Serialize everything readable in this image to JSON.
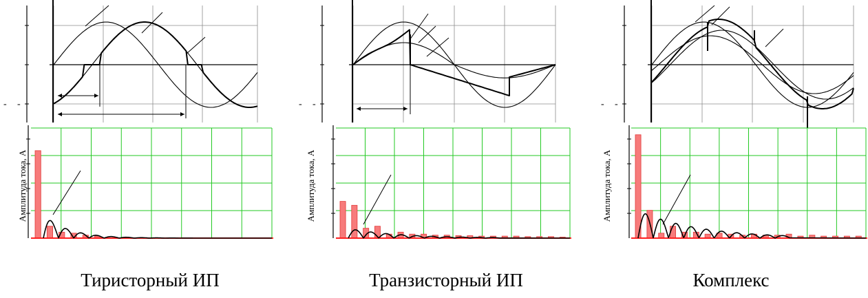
{
  "panels": [
    {
      "id": "thyristor",
      "caption": "Тиристорный ИП",
      "spectrum_ylabel": "Амплитуда тока, А"
    },
    {
      "id": "transistor",
      "caption": "Транзисторный ИП",
      "spectrum_ylabel": "Амплитуда тока, А"
    },
    {
      "id": "complex",
      "caption": "Комплекс",
      "spectrum_ylabel": "Амплитуда тока, А"
    }
  ],
  "axis_marks": {
    "minus": "-"
  },
  "colors": {
    "grid_top": "#8c8c8c",
    "grid_spectrum": "#22c922",
    "bar_fill": "#f77b7b",
    "bar_edge": "#e23a3a",
    "axis_red": "#ff2020",
    "line": "#000000"
  },
  "chart_data": [
    {
      "type": "bar",
      "panel": "thyristor",
      "harmonics": [
        1,
        2,
        3,
        4,
        5,
        6,
        7,
        8,
        9,
        10,
        11,
        12,
        13,
        14,
        15,
        16,
        17,
        18,
        19,
        20
      ],
      "values": [
        0.88,
        0.12,
        0.06,
        0.05,
        0.03,
        0.02,
        0,
        0,
        0,
        0,
        0,
        0,
        0,
        0,
        0,
        0,
        0,
        0,
        0,
        0
      ],
      "ylim": [
        0,
        1
      ]
    },
    {
      "type": "bar",
      "panel": "transistor",
      "harmonics": [
        1,
        2,
        3,
        4,
        5,
        6,
        7,
        8,
        9,
        10,
        11,
        12,
        13,
        14,
        15,
        16,
        17,
        18,
        19,
        20
      ],
      "values": [
        0.37,
        0.33,
        0.1,
        0.12,
        0.04,
        0.06,
        0.04,
        0.04,
        0.03,
        0.03,
        0.025,
        0.025,
        0.02,
        0.02,
        0.02,
        0.02,
        0.015,
        0.015,
        0.015,
        0.01
      ],
      "ylim": [
        0,
        1
      ]
    },
    {
      "type": "bar",
      "panel": "complex",
      "harmonics": [
        1,
        2,
        3,
        4,
        5,
        6,
        7,
        8,
        9,
        10,
        11,
        12,
        13,
        14,
        15,
        16,
        17,
        18,
        19,
        20
      ],
      "values": [
        1.04,
        0.28,
        0.05,
        0.12,
        0.06,
        0.06,
        0.04,
        0.05,
        0.04,
        0.03,
        0.04,
        0.03,
        0.03,
        0.04,
        0.02,
        0.03,
        0.02,
        0.02,
        0.02,
        0.02
      ],
      "ylim": [
        0,
        1
      ]
    }
  ]
}
